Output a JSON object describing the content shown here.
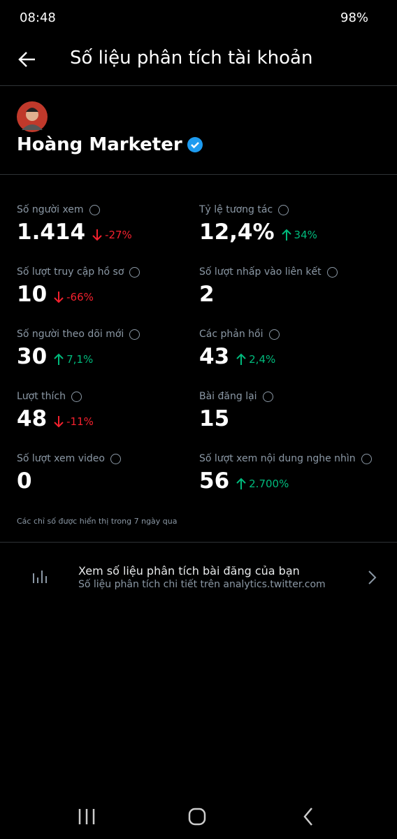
{
  "status_bar": {
    "time": "08:48",
    "battery": "98%"
  },
  "header": {
    "title": "Số liệu phân tích tài khoản"
  },
  "profile": {
    "name": "Hoàng Marketer"
  },
  "metrics": [
    {
      "label": "Số người xem",
      "value": "1.414",
      "change": "-27%",
      "trend": "down"
    },
    {
      "label": "Tỷ lệ tương tác",
      "value": "12,4%",
      "change": "34%",
      "trend": "up"
    },
    {
      "label": "Số lượt truy cập hồ sơ",
      "value": "10",
      "change": "-66%",
      "trend": "down"
    },
    {
      "label": "Số lượt nhấp vào liên kết",
      "value": "2"
    },
    {
      "label": "Số người theo dõi mới",
      "value": "30",
      "change": "7,1%",
      "trend": "up"
    },
    {
      "label": "Các phản hồi",
      "value": "43",
      "change": "2,4%",
      "trend": "up"
    },
    {
      "label": "Lượt thích",
      "value": "48",
      "change": "-11%",
      "trend": "down"
    },
    {
      "label": "Bài đăng lại",
      "value": "15"
    },
    {
      "label": "Số lượt xem video",
      "value": "0"
    },
    {
      "label": "Số lượt xem nội dung nghe nhìn",
      "value": "56",
      "change": "2.700%",
      "trend": "up"
    }
  ],
  "note": "Các chỉ số được hiển thị trong 7 ngày qua",
  "link": {
    "title": "Xem số liệu phân tích bài đăng của bạn",
    "subtitle": "Số liệu phân tích chi tiết trên analytics.twitter.com"
  }
}
